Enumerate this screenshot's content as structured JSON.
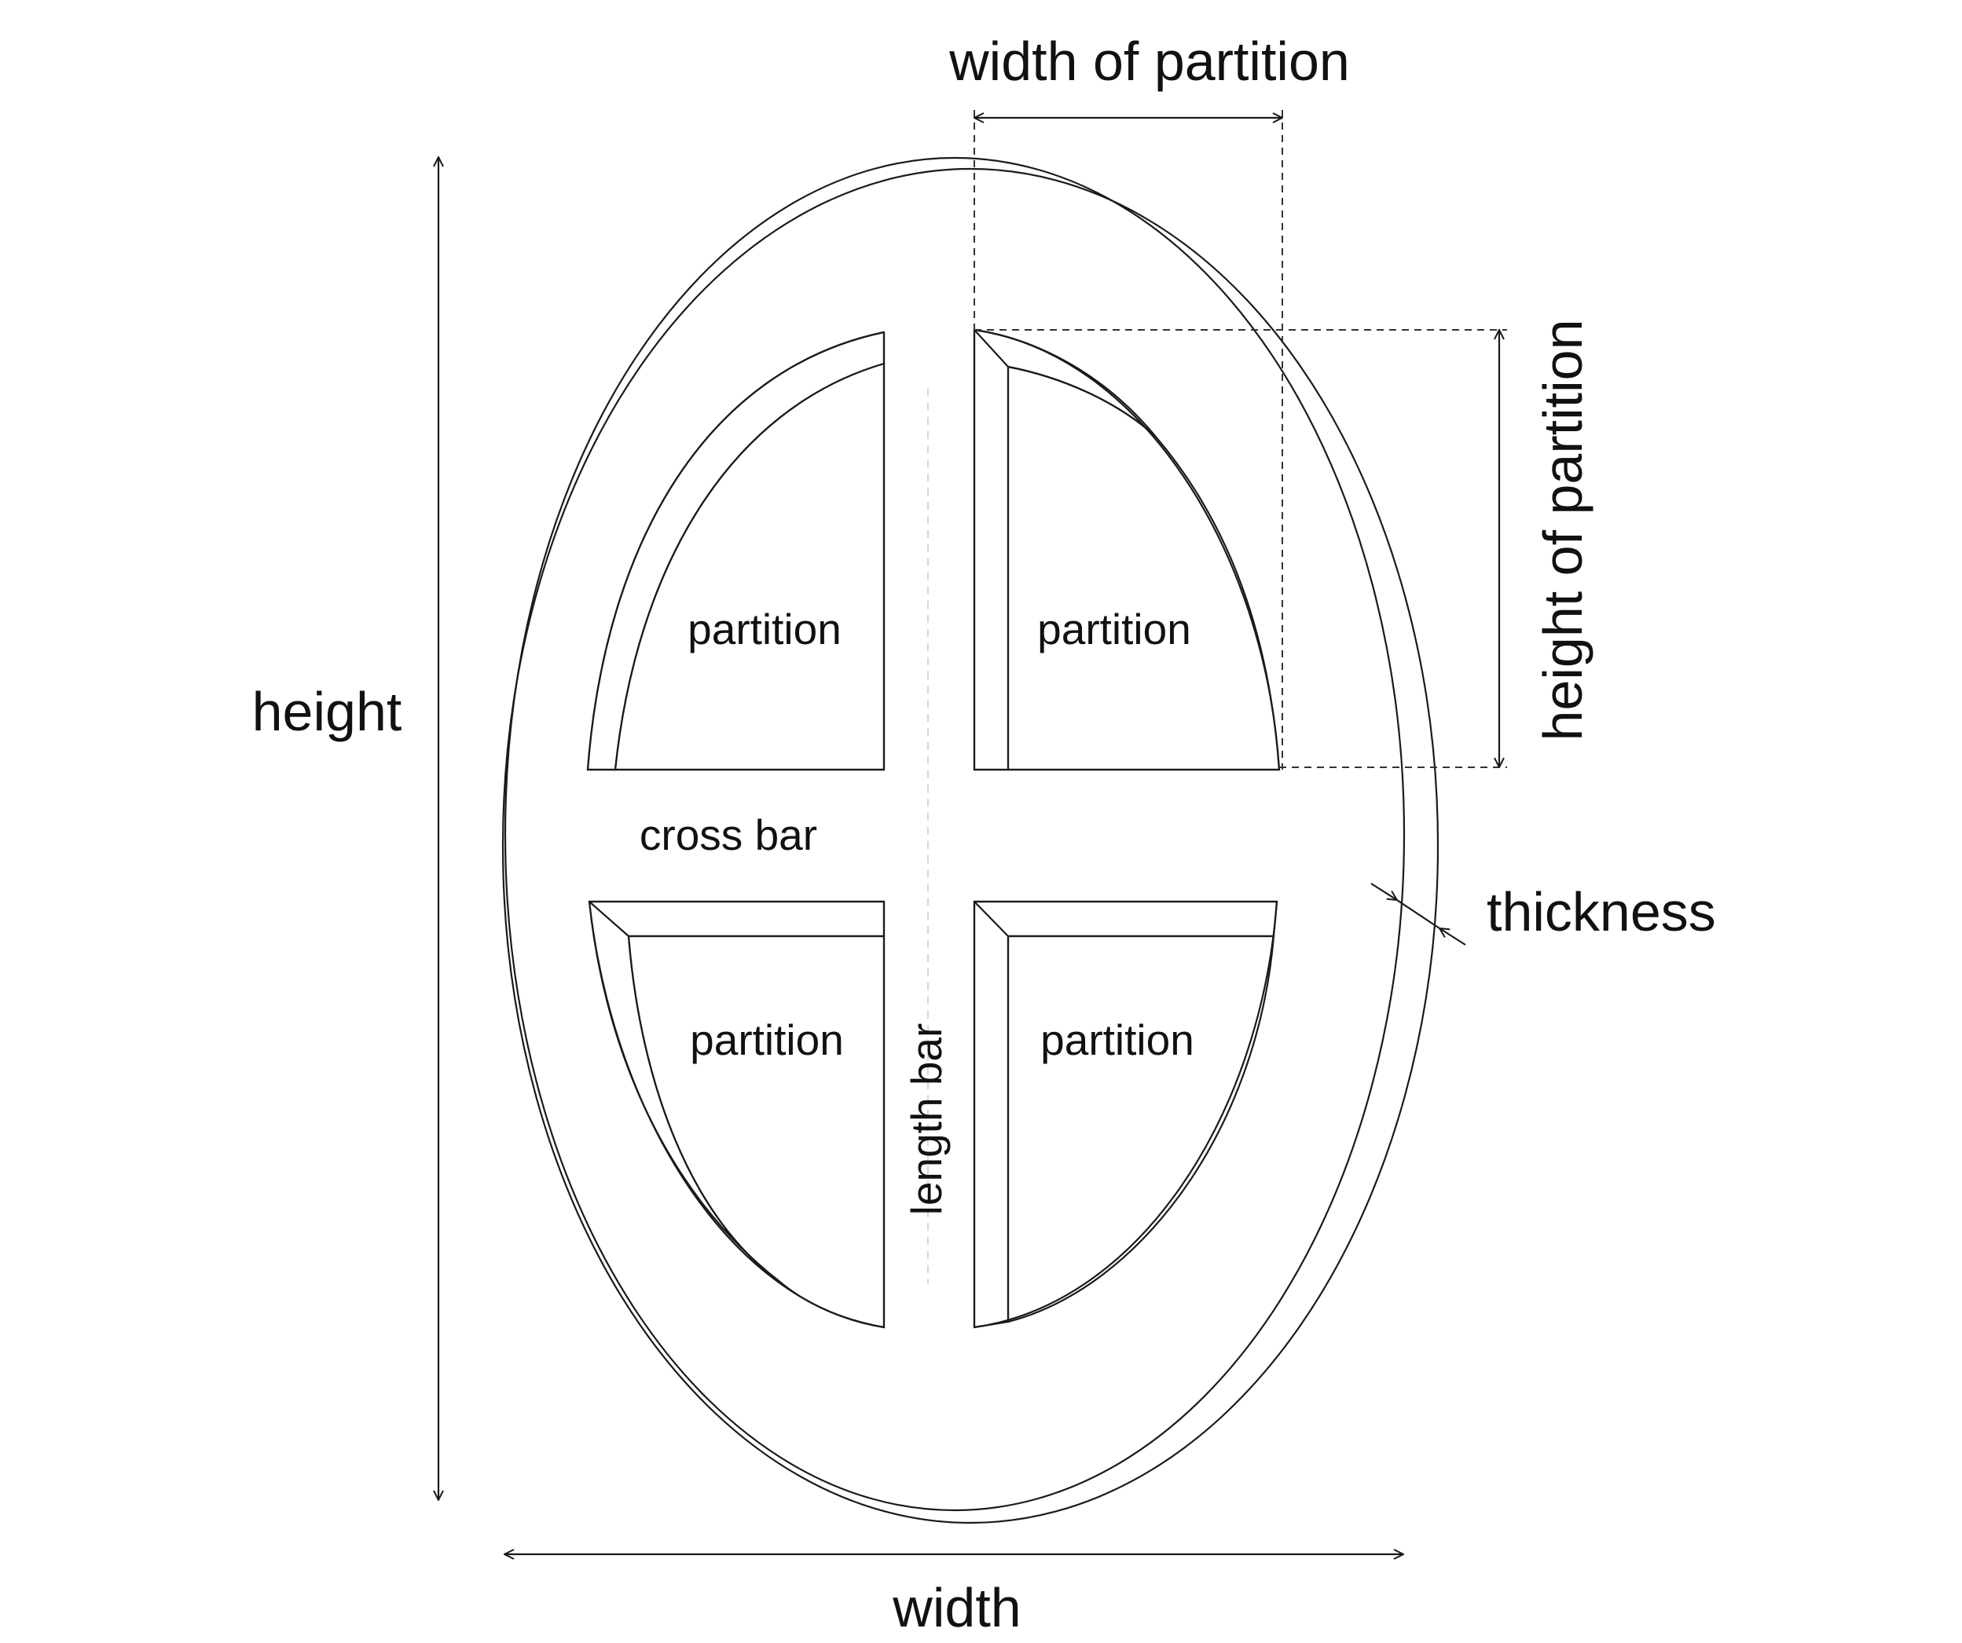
{
  "diagram": {
    "labels": {
      "width_of_partition": "width of partition",
      "height_of_partition": "height of partition",
      "height": "height",
      "width": "width",
      "thickness": "thickness",
      "cross_bar": "cross bar",
      "length_bar": "length bar",
      "partition_top_left": "partition",
      "partition_top_right": "partition",
      "partition_bottom_left": "partition",
      "partition_bottom_right": "partition"
    },
    "colors": {
      "line": "#1a1a1a",
      "bevel_fill": "#f2f2f2",
      "dash": "#333333",
      "bar_guide": "#c8c8c8"
    }
  }
}
